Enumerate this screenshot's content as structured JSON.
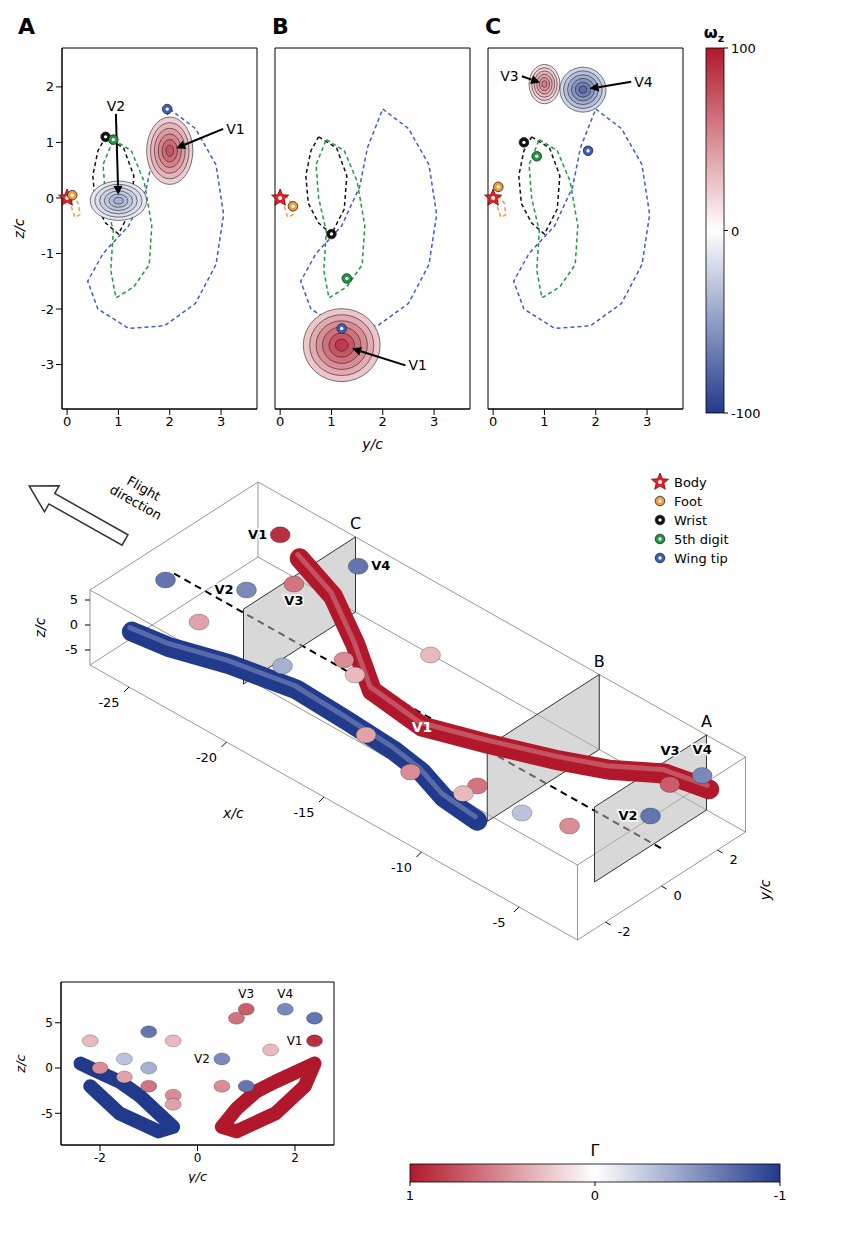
{
  "chart_data": [
    {
      "type": "contour",
      "panel": "A",
      "ylabel": "z/c",
      "xlim": [
        -0.1,
        3.7
      ],
      "ylim": [
        -3.8,
        2.7
      ],
      "xticks": [
        0,
        1,
        2,
        3
      ],
      "yticks": [
        -3,
        -2,
        -1,
        0,
        1,
        2
      ],
      "tick_labels": true,
      "markers": {
        "Body": [
          0,
          0
        ],
        "Foot": [
          0.1,
          0.05
        ],
        "Wrist": [
          0.75,
          1.1
        ],
        "5th digit": [
          0.9,
          1.05
        ],
        "Wing tip": [
          1.95,
          1.6
        ]
      },
      "vortices": [
        {
          "name": "V1",
          "y": 2.0,
          "z": 0.85,
          "omega": 75,
          "ry": 0.45,
          "rz": 0.6
        },
        {
          "name": "V2",
          "y": 1.0,
          "z": -0.05,
          "omega": -40,
          "ry": 0.55,
          "rz": 0.35
        }
      ]
    },
    {
      "type": "contour",
      "panel": "B",
      "xlabel": "y/c",
      "xlim": [
        -0.1,
        3.7
      ],
      "ylim": [
        -3.8,
        2.7
      ],
      "xticks": [
        0,
        1,
        2,
        3
      ],
      "yticks": [
        -3,
        -2,
        -1,
        0,
        1,
        2
      ],
      "tick_labels": "x",
      "markers": {
        "Body": [
          0,
          0
        ],
        "Foot": [
          0.25,
          -0.15
        ],
        "Wrist": [
          1.0,
          -0.65
        ],
        "5th digit": [
          1.3,
          -1.45
        ],
        "Wing tip": [
          1.2,
          -2.35
        ]
      },
      "vortices": [
        {
          "name": "V1",
          "y": 1.2,
          "z": -2.65,
          "omega": 85,
          "ry": 0.75,
          "rz": 0.65
        }
      ]
    },
    {
      "type": "contour",
      "panel": "C",
      "xlim": [
        -0.1,
        3.7
      ],
      "ylim": [
        -3.8,
        2.7
      ],
      "xticks": [
        0,
        1,
        2,
        3
      ],
      "yticks": [
        -3,
        -2,
        -1,
        0,
        1,
        2
      ],
      "tick_labels": "x",
      "markers": {
        "Body": [
          0,
          0
        ],
        "Foot": [
          0.1,
          0.2
        ],
        "Wrist": [
          0.6,
          1.0
        ],
        "5th digit": [
          0.85,
          0.75
        ],
        "Wing tip": [
          1.85,
          0.85
        ]
      },
      "vortices": [
        {
          "name": "V3",
          "y": 1.0,
          "z": 2.05,
          "omega": 55,
          "ry": 0.3,
          "rz": 0.35
        },
        {
          "name": "V4",
          "y": 1.75,
          "z": 1.95,
          "omega": -75,
          "ry": 0.45,
          "rz": 0.4
        }
      ]
    },
    {
      "type": "isosurface_3d",
      "xlabel": "x/c",
      "ylabel": "y/c",
      "zlabel": "z/c",
      "xlim": [
        -27,
        -2
      ],
      "ylim": [
        -3,
        3
      ],
      "zlim": [
        -8,
        7
      ],
      "xticks": [
        -25,
        -20,
        -15,
        -10,
        -5
      ],
      "yticks": [
        -2,
        0,
        2
      ],
      "zticks": [
        -5,
        0,
        5
      ],
      "slices": [
        {
          "label": "C",
          "x": -22
        },
        {
          "label": "B",
          "x": -9.5
        },
        {
          "label": "A",
          "x": -4
        }
      ],
      "tubes": [
        {
          "label": "V1",
          "gamma": 1,
          "points": [
            [
              -3,
              2.4,
              0.5
            ],
            [
              -5,
              2.2,
              0
            ],
            [
              -7,
              1.6,
              -1.5
            ],
            [
              -9,
              1.2,
              -2.6
            ],
            [
              -12,
              0.8,
              -4.5
            ],
            [
              -15,
              0.5,
              -6.5
            ],
            [
              -18,
              0.8,
              -7
            ],
            [
              -20,
              1.6,
              -5
            ],
            [
              -22,
              2.2,
              -2
            ],
            [
              -24,
              2.4,
              0.5
            ]
          ]
        },
        {
          "gamma": -1,
          "points": [
            [
              -8,
              -2.4,
              0.5
            ],
            [
              -10,
              -2.2,
              0
            ],
            [
              -12,
              -1.6,
              -1.5
            ],
            [
              -14,
              -1.2,
              -3
            ],
            [
              -17,
              -0.8,
              -5
            ],
            [
              -20,
              -0.5,
              -6.5
            ],
            [
              -23,
              -0.8,
              -7
            ],
            [
              -25,
              -1.6,
              -5
            ],
            [
              -26,
              -2.2,
              -2
            ]
          ]
        }
      ],
      "blobs": [
        {
          "x": -25,
          "y": 2.4,
          "z": 3,
          "gamma": 0.9,
          "label": "V1"
        },
        {
          "x": -24,
          "y": 0.5,
          "z": 1,
          "gamma": -0.6,
          "label": "V2"
        },
        {
          "x": -22,
          "y": 0.8,
          "z": 5.5,
          "gamma": 0.6,
          "label": "V3"
        },
        {
          "x": -21,
          "y": 2.4,
          "z": 5.5,
          "gamma": -0.7,
          "label": "V4"
        },
        {
          "x": -4,
          "y": 1.0,
          "z": -2,
          "gamma": -0.7,
          "label": "V2"
        },
        {
          "x": -3,
          "y": 1.0,
          "z": 6.5,
          "gamma": 0.7,
          "label": "V3"
        },
        {
          "x": -2.5,
          "y": 1.8,
          "z": 6.5,
          "gamma": -0.6,
          "label": "V4"
        },
        {
          "x": -20,
          "y": -1,
          "z": 0,
          "gamma": -0.4
        },
        {
          "x": -19,
          "y": 0.5,
          "z": -2,
          "gamma": 0.5
        },
        {
          "x": -17,
          "y": -0.5,
          "z": 3,
          "gamma": 0.3
        },
        {
          "x": -15,
          "y": -1.5,
          "z": -1,
          "gamma": 0.4
        },
        {
          "x": -12,
          "y": -2,
          "z": 0,
          "gamma": 0.5
        },
        {
          "x": -10,
          "y": -1,
          "z": -2,
          "gamma": 0.6
        },
        {
          "x": -9,
          "y": -2.2,
          "z": 3,
          "gamma": 0.3
        },
        {
          "x": -7,
          "y": -1.5,
          "z": 1,
          "gamma": -0.3
        },
        {
          "x": -6,
          "y": -0.5,
          "z": -3,
          "gamma": 0.5
        },
        {
          "x": -16,
          "y": 1.5,
          "z": 2,
          "gamma": 0.3
        },
        {
          "x": -26,
          "y": -1,
          "z": 4,
          "gamma": -0.7
        },
        {
          "x": -25,
          "y": -0.5,
          "z": -4,
          "gamma": 0.4
        }
      ]
    },
    {
      "type": "front_view",
      "xlabel": "y/c",
      "ylabel": "z/c",
      "xlim": [
        -2.8,
        2.8
      ],
      "ylim": [
        -8.5,
        9.5
      ],
      "xticks": [
        -2,
        0,
        2
      ],
      "yticks": [
        -5,
        0,
        5
      ]
    }
  ],
  "symbols": [
    {
      "name": "Body",
      "color": "#e8202a",
      "marker": "star"
    },
    {
      "name": "Foot",
      "color": "#f29a3c",
      "marker": "circle"
    },
    {
      "name": "Wrist",
      "color": "#111111",
      "marker": "circle"
    },
    {
      "name": "5th digit",
      "color": "#1e9a3e",
      "marker": "circle"
    },
    {
      "name": "Wing tip",
      "color": "#3b5fc0",
      "marker": "circle"
    }
  ],
  "trajectories": {
    "Foot": [
      [
        0.1,
        0.05
      ],
      [
        0.22,
        -0.1
      ],
      [
        0.25,
        -0.3
      ],
      [
        0.15,
        -0.35
      ],
      [
        0.08,
        -0.15
      ]
    ],
    "Wrist": [
      [
        0.75,
        1.1
      ],
      [
        1.1,
        0.9
      ],
      [
        1.3,
        0.4
      ],
      [
        1.25,
        -0.2
      ],
      [
        1.0,
        -0.65
      ],
      [
        0.75,
        -0.45
      ],
      [
        0.55,
        -0.1
      ],
      [
        0.5,
        0.4
      ],
      [
        0.6,
        0.85
      ]
    ],
    "5th digit": [
      [
        0.9,
        1.05
      ],
      [
        1.25,
        0.85
      ],
      [
        1.5,
        0.3
      ],
      [
        1.65,
        -0.5
      ],
      [
        1.6,
        -1.2
      ],
      [
        1.3,
        -1.6
      ],
      [
        0.95,
        -1.8
      ],
      [
        0.85,
        -1.3
      ],
      [
        0.9,
        -0.6
      ],
      [
        0.75,
        0.0
      ],
      [
        0.7,
        0.6
      ]
    ],
    "Wing tip": [
      [
        2.0,
        1.6
      ],
      [
        2.5,
        1.25
      ],
      [
        2.9,
        0.6
      ],
      [
        3.05,
        -0.3
      ],
      [
        2.9,
        -1.2
      ],
      [
        2.5,
        -1.9
      ],
      [
        1.9,
        -2.3
      ],
      [
        1.2,
        -2.35
      ],
      [
        0.6,
        -2.0
      ],
      [
        0.4,
        -1.5
      ],
      [
        0.7,
        -1.0
      ],
      [
        1.2,
        -0.5
      ],
      [
        1.55,
        0.2
      ],
      [
        1.7,
        0.9
      ]
    ]
  },
  "colorbar_omega": {
    "label": "ω",
    "subscript": "z",
    "range": [
      -100,
      100
    ],
    "ticks": [
      -100,
      0,
      100
    ]
  },
  "colorbar_gamma": {
    "label": "Γ",
    "range": [
      1,
      -1
    ],
    "ticks": [
      1,
      0,
      -1
    ]
  },
  "annotation": "Flight direction"
}
